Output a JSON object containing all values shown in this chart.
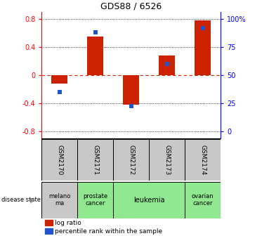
{
  "title": "GDS88 / 6526",
  "samples": [
    "GSM2170",
    "GSM2171",
    "GSM2172",
    "GSM2173",
    "GSM2174"
  ],
  "log_ratios": [
    -0.12,
    0.55,
    -0.42,
    0.28,
    0.78
  ],
  "percentile_ranks": [
    0.35,
    0.88,
    0.22,
    0.6,
    0.92
  ],
  "disease_groups": [
    {
      "label": "melano\nma",
      "span": [
        0,
        1
      ],
      "color": "#c8c8c8"
    },
    {
      "label": "prostate\ncancer",
      "span": [
        1,
        2
      ],
      "color": "#90e890"
    },
    {
      "label": "leukemia",
      "span": [
        2,
        4
      ],
      "color": "#90e890"
    },
    {
      "label": "ovarian\ncancer",
      "span": [
        4,
        5
      ],
      "color": "#90e890"
    }
  ],
  "bar_color": "#cc2200",
  "dot_color": "#2255cc",
  "ylim": [
    -0.9,
    0.9
  ],
  "yticks": [
    -0.8,
    -0.4,
    0.0,
    0.4,
    0.8
  ],
  "right_yticks": [
    0,
    25,
    50,
    75,
    100
  ],
  "right_ylabels": [
    "0",
    "25",
    "50",
    "75",
    "100%"
  ],
  "zero_line_color": "#cc2200",
  "sample_box_color": "#c8c8c8",
  "melanoma_color": "#c8c8c8",
  "green_color": "#90e890"
}
